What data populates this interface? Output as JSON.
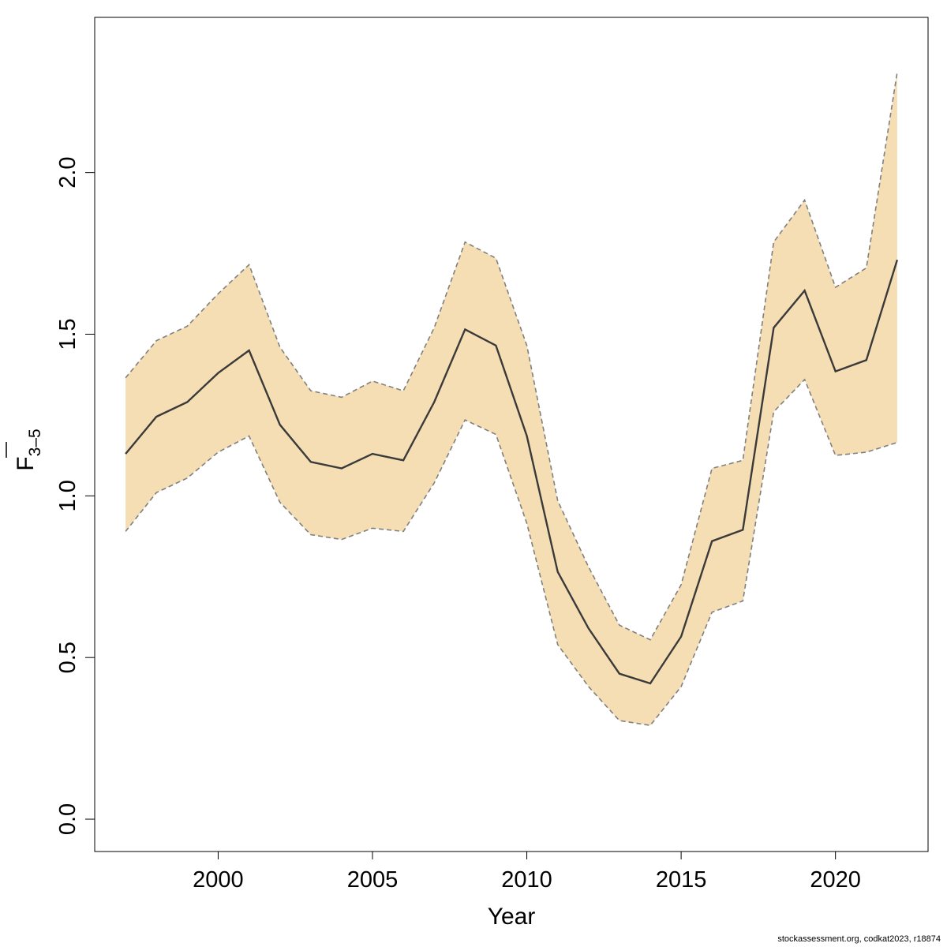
{
  "chart_data": {
    "type": "area",
    "xlabel": "Year",
    "ylabel": {
      "main": "F",
      "subscript": "3–5"
    },
    "xlim": [
      1996,
      2023
    ],
    "ylim": [
      -0.1,
      2.48
    ],
    "x_ticks": [
      2000,
      2005,
      2010,
      2015,
      2020
    ],
    "y_ticks": [
      0.0,
      0.5,
      1.0,
      1.5,
      2.0
    ],
    "y_tick_labels": [
      "0.0",
      "0.5",
      "1.0",
      "1.5",
      "2.0"
    ],
    "x": [
      1997,
      1998,
      1999,
      2000,
      2001,
      2002,
      2003,
      2004,
      2005,
      2006,
      2007,
      2008,
      2009,
      2010,
      2011,
      2012,
      2013,
      2014,
      2015,
      2016,
      2017,
      2018,
      2019,
      2020,
      2021,
      2022
    ],
    "series": [
      {
        "values": [
          1.13,
          1.245,
          1.29,
          1.38,
          1.45,
          1.22,
          1.105,
          1.085,
          1.13,
          1.11,
          1.29,
          1.515,
          1.465,
          1.185,
          0.765,
          0.59,
          0.45,
          0.42,
          0.565,
          0.86,
          0.895,
          1.52,
          1.635,
          1.385,
          1.42,
          1.73
        ]
      }
    ],
    "band": {
      "lower": [
        0.89,
        1.01,
        1.055,
        1.135,
        1.185,
        0.98,
        0.88,
        0.865,
        0.9,
        0.89,
        1.04,
        1.235,
        1.19,
        0.915,
        0.54,
        0.41,
        0.305,
        0.29,
        0.41,
        0.64,
        0.675,
        1.26,
        1.36,
        1.125,
        1.135,
        1.165
      ],
      "upper": [
        1.365,
        1.48,
        1.525,
        1.625,
        1.715,
        1.46,
        1.325,
        1.305,
        1.355,
        1.325,
        1.52,
        1.785,
        1.735,
        1.465,
        0.985,
        0.78,
        0.6,
        0.555,
        0.725,
        1.085,
        1.11,
        1.785,
        1.915,
        1.645,
        1.705,
        2.31
      ]
    },
    "grid": false,
    "legend": "none",
    "colors": {
      "band_fill": "#f5deb3",
      "band_border": "#808080",
      "line": "#3a3a3a",
      "axis": "#000000"
    }
  },
  "footer": {
    "credit": "stockassessment.org, codkat2023, r18874"
  }
}
